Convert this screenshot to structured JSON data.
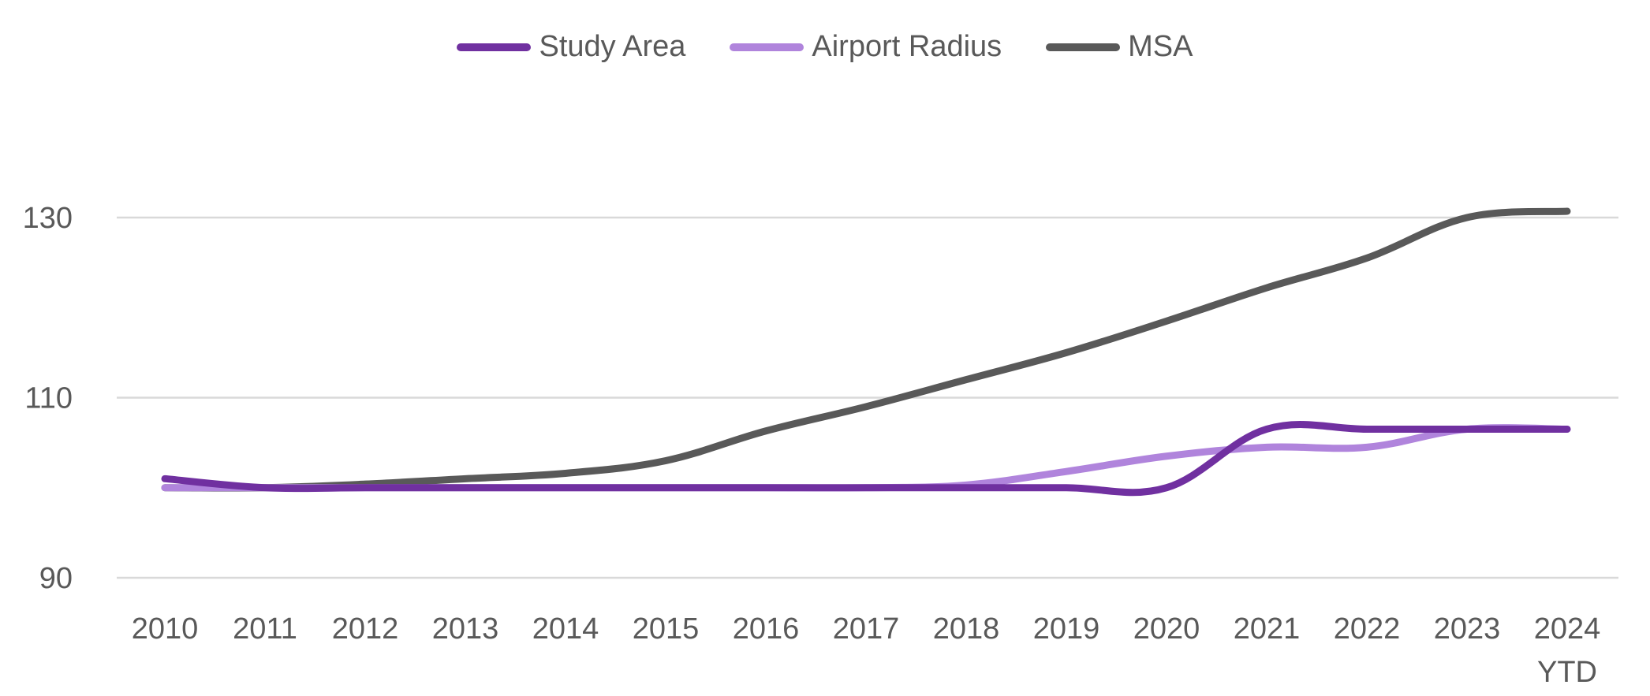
{
  "chart_data": {
    "type": "line",
    "title": "",
    "xlabel": "",
    "ylabel": "",
    "ylim": [
      90,
      130
    ],
    "yticks": [
      90,
      110,
      130
    ],
    "grid": true,
    "legend_position": "top-center",
    "categories": [
      "2010",
      "2011",
      "2012",
      "2013",
      "2014",
      "2015",
      "2016",
      "2017",
      "2018",
      "2019",
      "2020",
      "2021",
      "2022",
      "2023",
      "2024 YTD"
    ],
    "category_lines": [
      [
        "2010"
      ],
      [
        "2011"
      ],
      [
        "2012"
      ],
      [
        "2013"
      ],
      [
        "2014"
      ],
      [
        "2015"
      ],
      [
        "2016"
      ],
      [
        "2017"
      ],
      [
        "2018"
      ],
      [
        "2019"
      ],
      [
        "2020"
      ],
      [
        "2021"
      ],
      [
        "2022"
      ],
      [
        "2023"
      ],
      [
        "2024",
        "YTD"
      ]
    ],
    "series": [
      {
        "name": "Study Area",
        "color": "#7030a0",
        "values": [
          101.0,
          100.0,
          100.0,
          100.0,
          100.0,
          100.0,
          100.0,
          100.0,
          100.0,
          100.0,
          100.0,
          106.5,
          106.5,
          106.5,
          106.5
        ]
      },
      {
        "name": "Airport Radius",
        "color": "#b084dc",
        "values": [
          100.0,
          100.0,
          100.0,
          100.0,
          100.0,
          100.0,
          100.0,
          100.0,
          100.3,
          101.8,
          103.5,
          104.5,
          104.5,
          106.5,
          106.5
        ]
      },
      {
        "name": "MSA",
        "color": "#595959",
        "values": [
          100.0,
          100.0,
          100.4,
          101.0,
          101.6,
          103.0,
          106.3,
          109.0,
          112.0,
          115.0,
          118.5,
          122.2,
          125.5,
          130.0,
          130.7
        ]
      }
    ]
  }
}
